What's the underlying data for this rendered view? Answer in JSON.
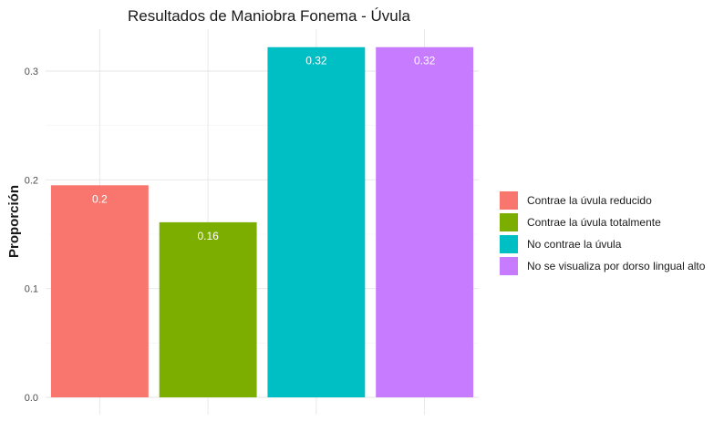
{
  "chart_data": {
    "type": "bar",
    "title": "Resultados de Maniobra Fonema - Úvula",
    "xlabel": "",
    "ylabel": "Proporción",
    "categories": [
      "Contrae la úvula reducido",
      "Contrae la úvula totalmente",
      "No contrae la úvula",
      "No se visualiza por dorso lingual alto"
    ],
    "values": [
      0.195,
      0.161,
      0.322,
      0.322
    ],
    "data_labels": [
      "0.2",
      "0.16",
      "0.32",
      "0.32"
    ],
    "colors": [
      "#F8766D",
      "#7CAE00",
      "#00BFC4",
      "#C77CFF"
    ],
    "ylim": [
      0,
      0.335
    ],
    "yticks": [
      0.0,
      0.1,
      0.2,
      0.3
    ],
    "ytick_labels": [
      "0.0",
      "0.1",
      "0.2",
      "0.3"
    ],
    "grid": true,
    "legend_position": "right",
    "legend": [
      "Contrae la úvula reducido",
      "Contrae la úvula totalmente",
      "No contrae la úvula",
      "No se visualiza por dorso lingual alto"
    ]
  }
}
